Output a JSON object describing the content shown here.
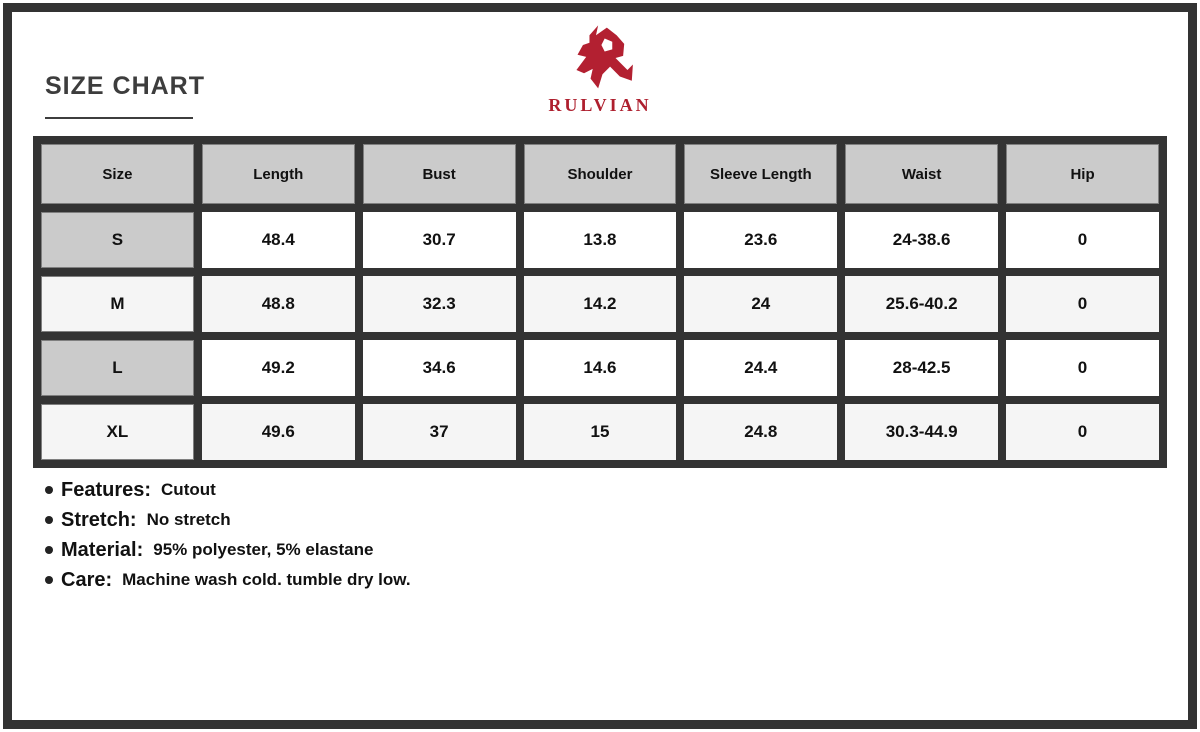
{
  "title": "SIZE CHART",
  "brand": "RULVIAN",
  "table": {
    "headers": [
      "Size",
      "Length",
      "Bust",
      "Shoulder",
      "Sleeve Length",
      "Waist",
      "Hip"
    ],
    "rows": [
      {
        "size": "S",
        "values": [
          "48.4",
          "30.7",
          "13.8",
          "23.6",
          "24-38.6",
          "0"
        ]
      },
      {
        "size": "M",
        "values": [
          "48.8",
          "32.3",
          "14.2",
          "24",
          "25.6-40.2",
          "0"
        ]
      },
      {
        "size": "L",
        "values": [
          "49.2",
          "34.6",
          "14.6",
          "24.4",
          "28-42.5",
          "0"
        ]
      },
      {
        "size": "XL",
        "values": [
          "49.6",
          "37",
          "15",
          "24.8",
          "30.3-44.9",
          "0"
        ]
      }
    ]
  },
  "bullets": [
    {
      "label": "Features:",
      "value": "Cutout"
    },
    {
      "label": "Stretch:",
      "value": "No stretch"
    },
    {
      "label": "Material:",
      "value": "95% polyester, 5% elastane"
    },
    {
      "label": "Care:",
      "value": "Machine wash cold. tumble dry low."
    }
  ],
  "colors": {
    "accent_red": "#ae1f2e",
    "frame_dark": "#333333",
    "header_gray": "#cbcbcb",
    "alt_row": "#f5f5f5"
  }
}
